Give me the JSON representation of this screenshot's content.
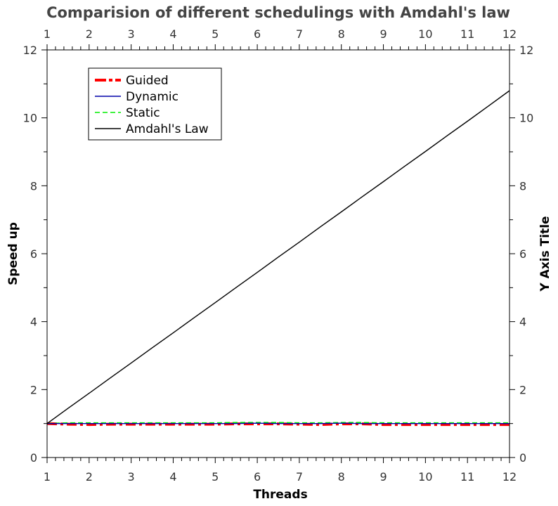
{
  "chart_data": {
    "type": "line",
    "title": "Comparision of different schedulings with Amdahl's law",
    "xlabel": "Threads",
    "ylabel": "Speed up",
    "ylabel_right": "Y Axis Title",
    "xlim": [
      1,
      12
    ],
    "ylim": [
      0,
      12
    ],
    "x_major_ticks": [
      1,
      2,
      3,
      4,
      5,
      6,
      7,
      8,
      9,
      10,
      11,
      12
    ],
    "y_major_ticks": [
      0,
      2,
      4,
      6,
      8,
      10,
      12
    ],
    "grid": false,
    "legend_position": "top-left",
    "x": [
      1,
      1.5,
      2,
      2.5,
      3,
      3.5,
      4,
      4.5,
      5,
      5.5,
      6,
      6.5,
      7,
      7.5,
      8,
      8.5,
      9,
      9.5,
      10,
      10.5,
      11,
      11.5,
      12
    ],
    "series": [
      {
        "name": "Guided",
        "color": "#ff0000",
        "style": "dash-dot-thick",
        "values": [
          1.0,
          0.98,
          0.97,
          0.98,
          0.98,
          0.98,
          0.98,
          0.98,
          0.98,
          0.99,
          0.99,
          0.99,
          0.98,
          0.97,
          0.99,
          0.99,
          0.97,
          0.97,
          0.97,
          0.97,
          0.97,
          0.97,
          0.97
        ]
      },
      {
        "name": "Dynamic",
        "color": "#0000aa",
        "style": "solid",
        "values": [
          1.0,
          1.0,
          1.0,
          1.0,
          1.0,
          1.0,
          1.0,
          1.0,
          1.0,
          1.0,
          1.01,
          1.0,
          1.0,
          1.0,
          1.01,
          1.0,
          1.0,
          1.0,
          1.0,
          1.0,
          1.0,
          1.0,
          1.0
        ]
      },
      {
        "name": "Static",
        "color": "#00ee00",
        "style": "dashed",
        "values": [
          1.0,
          1.02,
          1.02,
          1.02,
          1.02,
          1.02,
          1.02,
          1.02,
          1.02,
          1.03,
          1.03,
          1.03,
          1.02,
          1.02,
          1.03,
          1.03,
          1.02,
          1.02,
          1.02,
          1.02,
          1.02,
          1.02,
          1.02
        ]
      },
      {
        "name": "Amdahl's Law",
        "color": "#000000",
        "style": "solid",
        "values": [
          1.0,
          1.45,
          1.89,
          2.34,
          2.78,
          3.23,
          3.67,
          4.12,
          4.56,
          5.01,
          5.45,
          5.9,
          6.34,
          6.79,
          7.23,
          7.68,
          8.12,
          8.57,
          9.01,
          9.46,
          9.9,
          10.35,
          10.8
        ]
      }
    ]
  }
}
